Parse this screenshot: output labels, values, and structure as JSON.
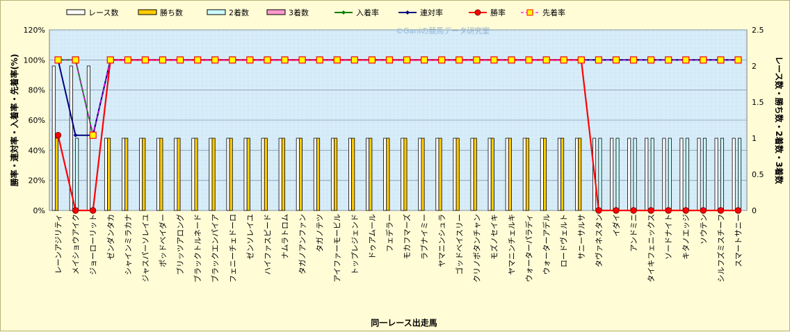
{
  "chart_data": {
    "type": "bar",
    "xlabel": "同一レース出走馬",
    "ylabel_left": "勝率・連対率・入着率・先着率(%)",
    "ylabel_right": "レース数・勝ち数・2着数・3着数",
    "watermark": "©Ganiの競馬データ研究室",
    "y_left_ticks": [
      "0%",
      "20%",
      "40%",
      "60%",
      "80%",
      "100%",
      "120%"
    ],
    "y_right_ticks": [
      "0",
      "0.5",
      "1",
      "1.5",
      "2",
      "2.5"
    ],
    "ylim_left": [
      0,
      120
    ],
    "ylim_right": [
      0,
      2.5
    ],
    "legend": [
      "レース数",
      "勝ち数",
      "2着数",
      "3着数",
      "入着率",
      "連対率",
      "勝率",
      "先着率"
    ],
    "colors": {
      "races": "#ffffff",
      "wins": "#ffcc00",
      "seconds": "#ccffff",
      "thirds": "#ff99cc",
      "place_rate": "#008000",
      "top2_rate": "#000080",
      "win_rate": "#ff0000",
      "ahead_rate": "#ff00ff",
      "plot_bg": "#d6ecf8",
      "grid": "#8a9ab0"
    },
    "categories": [
      "レーンアジリティ",
      "メイショウアイク",
      "ジョーローリット",
      "ゼンダンタカ",
      "シャインミラカナ",
      "ジャスパーソレイユ",
      "ポッドベイダー",
      "ブリッツアロング",
      "ブラックトルネード",
      "ブラックエンパイア",
      "フェニーチェドーロ",
      "ゼンソレイユ",
      "ハイファスピード",
      "ナムラトロム",
      "タガノアンファン",
      "タガノテツ",
      "アイファーモービル",
      "トップレジェンド",
      "ドゥアムール",
      "フェデラー",
      "モカフマーズ",
      "ラブナイミー",
      "ヤマニンシュラ",
      "ゴッドベイスリー",
      "クリノボタンチャン",
      "モズノセイキ",
      "ヤマニンチェルキ",
      "ウォーターパラディ",
      "ウォーターアデル",
      "ロードヴェルト",
      "サニーサルサ",
      "タヴァネスタン",
      "イダイ",
      "アンドミニ",
      "タイキフェニックス",
      "ソードナイト",
      "キタノエッジ",
      "ソウテン",
      "シルフズミスチーフ",
      "スマートサニー"
    ],
    "series": [
      {
        "name": "レース数",
        "axis": "right",
        "values": [
          2,
          2,
          2,
          1,
          1,
          1,
          1,
          1,
          1,
          1,
          1,
          1,
          1,
          1,
          1,
          1,
          1,
          1,
          1,
          1,
          1,
          1,
          1,
          1,
          1,
          1,
          1,
          1,
          1,
          1,
          1,
          1,
          1,
          1,
          1,
          1,
          1,
          1,
          1,
          1
        ]
      },
      {
        "name": "勝ち数",
        "axis": "right",
        "values": [
          1,
          0,
          0,
          1,
          1,
          1,
          1,
          1,
          1,
          1,
          1,
          1,
          1,
          1,
          1,
          1,
          1,
          1,
          1,
          1,
          1,
          1,
          1,
          1,
          1,
          1,
          1,
          1,
          1,
          1,
          1,
          0,
          0,
          0,
          0,
          0,
          0,
          0,
          0,
          0
        ]
      },
      {
        "name": "2着数",
        "axis": "right",
        "values": [
          0,
          1,
          0,
          0,
          0,
          0,
          0,
          0,
          0,
          0,
          0,
          0,
          0,
          0,
          0,
          0,
          0,
          0,
          0,
          0,
          0,
          0,
          0,
          0,
          0,
          0,
          0,
          0,
          0,
          0,
          0,
          1,
          1,
          1,
          1,
          1,
          1,
          1,
          1,
          1
        ]
      },
      {
        "name": "3着数",
        "axis": "right",
        "values": [
          0,
          0,
          0,
          0,
          0,
          0,
          0,
          0,
          0,
          0,
          0,
          0,
          0,
          0,
          0,
          0,
          0,
          0,
          0,
          0,
          0,
          0,
          0,
          0,
          0,
          0,
          0,
          0,
          0,
          0,
          0,
          0,
          0,
          0,
          0,
          0,
          0,
          0,
          0,
          0
        ]
      },
      {
        "name": "入着率",
        "axis": "left",
        "values": [
          100,
          100,
          50,
          100,
          100,
          100,
          100,
          100,
          100,
          100,
          100,
          100,
          100,
          100,
          100,
          100,
          100,
          100,
          100,
          100,
          100,
          100,
          100,
          100,
          100,
          100,
          100,
          100,
          100,
          100,
          100,
          100,
          100,
          100,
          100,
          100,
          100,
          100,
          100,
          100
        ]
      },
      {
        "name": "連対率",
        "axis": "left",
        "values": [
          100,
          50,
          50,
          100,
          100,
          100,
          100,
          100,
          100,
          100,
          100,
          100,
          100,
          100,
          100,
          100,
          100,
          100,
          100,
          100,
          100,
          100,
          100,
          100,
          100,
          100,
          100,
          100,
          100,
          100,
          100,
          100,
          100,
          100,
          100,
          100,
          100,
          100,
          100,
          100
        ]
      },
      {
        "name": "勝率",
        "axis": "left",
        "values": [
          50,
          0,
          0,
          100,
          100,
          100,
          100,
          100,
          100,
          100,
          100,
          100,
          100,
          100,
          100,
          100,
          100,
          100,
          100,
          100,
          100,
          100,
          100,
          100,
          100,
          100,
          100,
          100,
          100,
          100,
          100,
          0,
          0,
          0,
          0,
          0,
          0,
          0,
          0,
          0
        ]
      },
      {
        "name": "先着率",
        "axis": "left",
        "values": [
          100,
          100,
          50,
          100,
          100,
          100,
          100,
          100,
          100,
          100,
          100,
          100,
          100,
          100,
          100,
          100,
          100,
          100,
          100,
          100,
          100,
          100,
          100,
          100,
          100,
          100,
          100,
          100,
          100,
          100,
          100,
          100,
          100,
          100,
          100,
          100,
          100,
          100,
          100,
          100
        ]
      }
    ]
  }
}
